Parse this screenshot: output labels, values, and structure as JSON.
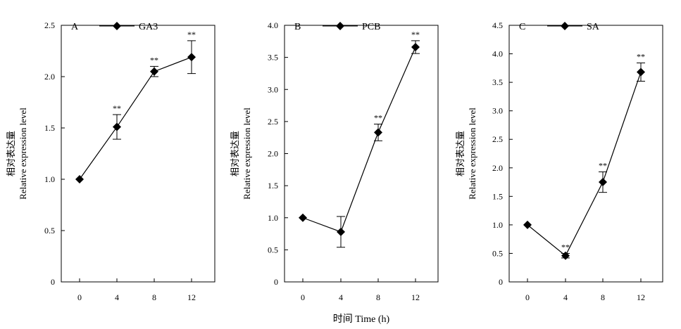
{
  "figure": {
    "xaxis_title": "时间 Time (h)"
  },
  "chart_data": [
    {
      "type": "line",
      "panel_label": "A",
      "series": [
        {
          "name": "GA3",
          "x": [
            0,
            4,
            8,
            12
          ],
          "values": [
            1.0,
            1.51,
            2.05,
            2.19
          ],
          "error": [
            0,
            0.12,
            0.05,
            0.16
          ],
          "significance": [
            "",
            "**",
            "**",
            "**"
          ]
        }
      ],
      "x_ticks": [
        "0",
        "4",
        "8",
        "12"
      ],
      "y_ticks": [
        "0",
        "0.5",
        "1.0",
        "1.5",
        "2.0",
        "2.5"
      ],
      "ylim": [
        0,
        2.5
      ],
      "ylabel_cn": "相对表达量",
      "ylabel_en": "Relative expression level",
      "legend_position": "top-left"
    },
    {
      "type": "line",
      "panel_label": "B",
      "series": [
        {
          "name": "PCB",
          "x": [
            0,
            4,
            8,
            12
          ],
          "values": [
            1.0,
            0.78,
            2.33,
            3.66
          ],
          "error": [
            0,
            0.24,
            0.13,
            0.1
          ],
          "significance": [
            "",
            "",
            "**",
            "**"
          ]
        }
      ],
      "x_ticks": [
        "0",
        "4",
        "8",
        "12"
      ],
      "y_ticks": [
        "0",
        "0.5",
        "1.0",
        "1.5",
        "2.0",
        "2.5",
        "3.0",
        "3.5",
        "4.0"
      ],
      "ylim": [
        0,
        4.0
      ],
      "ylabel_cn": "相对表达量",
      "ylabel_en": "Relative expression level",
      "legend_position": "top-left"
    },
    {
      "type": "line",
      "panel_label": "C",
      "series": [
        {
          "name": "SA",
          "x": [
            0,
            4,
            8,
            12
          ],
          "values": [
            1.0,
            0.46,
            1.75,
            3.68
          ],
          "error": [
            0,
            0.04,
            0.18,
            0.16
          ],
          "significance": [
            "",
            "**",
            "**",
            "**"
          ]
        }
      ],
      "x_ticks": [
        "0",
        "4",
        "8",
        "12"
      ],
      "y_ticks": [
        "0",
        "0.5",
        "1.0",
        "1.5",
        "2.0",
        "2.5",
        "3.0",
        "3.5",
        "4.0",
        "4.5"
      ],
      "ylim": [
        0,
        4.5
      ],
      "ylabel_cn": "相对表达量",
      "ylabel_en": "Relative expression level",
      "legend_position": "top-left"
    }
  ]
}
